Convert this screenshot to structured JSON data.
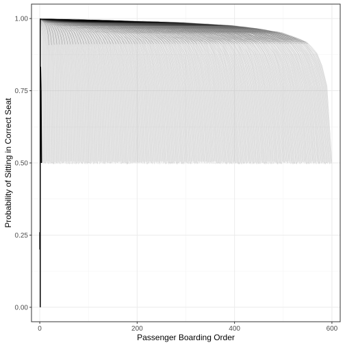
{
  "chart_data": {
    "type": "line",
    "title": "",
    "xlabel": "Passenger Boarding Order",
    "ylabel": "Probability of Sitting in Correct Seat",
    "xlim": [
      -17,
      617
    ],
    "ylim": [
      -0.05,
      1.05
    ],
    "x_ticks": [
      0,
      200,
      400,
      600
    ],
    "x_tick_labels": [
      "0",
      "200",
      "400",
      "600"
    ],
    "y_ticks": [
      0.0,
      0.25,
      0.5,
      0.75,
      1.0
    ],
    "y_tick_labels": [
      "0.00",
      "0.25",
      "0.50",
      "0.75",
      "1.00"
    ],
    "grid": true,
    "legend": "none",
    "colors": {
      "gray_lines": "#b3b3b3",
      "black_lines": "#000000",
      "panel_border": "#333333",
      "grid": "#ebebeb"
    },
    "series": [
      {
        "group": "plane_size_600",
        "color": "#b3b3b3",
        "x": [
          2,
          50,
          100,
          150,
          200,
          250,
          300,
          350,
          400,
          450,
          500,
          550,
          570,
          585,
          592,
          596,
          598,
          600
        ],
        "y": [
          0.998,
          0.997,
          0.995,
          0.993,
          0.99,
          0.988,
          0.985,
          0.98,
          0.975,
          0.965,
          0.95,
          0.92,
          0.88,
          0.82,
          0.75,
          0.66,
          0.58,
          0.5
        ]
      },
      {
        "group": "plane_size_1",
        "color": "#000000",
        "x": [
          1
        ],
        "y": [
          0.0
        ]
      },
      {
        "group": "plane_size_2",
        "color": "#000000",
        "x": [
          1,
          2
        ],
        "y": [
          0.5,
          0.5
        ]
      },
      {
        "group": "plane_size_3",
        "color": "#000000",
        "x": [
          1,
          2,
          3
        ],
        "y": [
          0.667,
          0.75,
          0.5
        ]
      },
      {
        "group": "plane_size_4",
        "color": "#000000",
        "x": [
          1,
          2,
          3,
          4
        ],
        "y": [
          0.75,
          0.833,
          0.75,
          0.5
        ]
      }
    ]
  }
}
